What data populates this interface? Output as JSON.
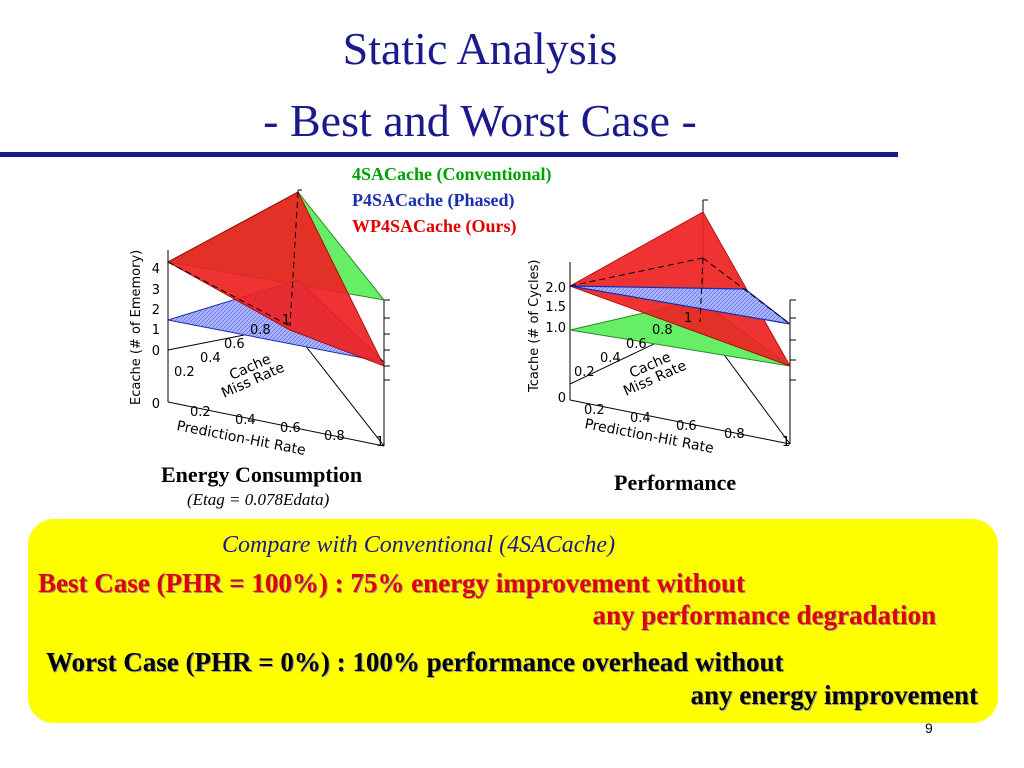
{
  "slide": {
    "title_line1": "Static Analysis",
    "title_line2": "- Best and Worst Case -",
    "page_number": "9"
  },
  "legend": {
    "conventional": "4SACache (Conventional)",
    "phased": "P4SACache (Phased)",
    "ours": "WP4SACache (Ours)"
  },
  "colors": {
    "title": "#1a1a8c",
    "conventional": "#00a000",
    "phased": "#1a2eb0",
    "ours": "#e00000",
    "conventional_fill": "#66ee66",
    "phased_fill": "#aab4ff",
    "ours_fill": "#ee2222",
    "highlight_box": "#ffff00"
  },
  "charts": {
    "energy": {
      "zlabel": "Ecache (# of Ememory)",
      "z_ticks": [
        "4",
        "3",
        "2",
        "1",
        "0"
      ],
      "miss_label_1": "Cache",
      "miss_label_2": "Miss Rate",
      "miss_ticks": [
        "0.2",
        "0.4",
        "0.6",
        "0.8",
        "1"
      ],
      "phr_label": "Prediction-Hit Rate",
      "phr_ticks": [
        "0.2",
        "0.4",
        "0.6",
        "0.8",
        "1"
      ],
      "origin_label": "0",
      "caption": "Energy Consumption",
      "caption_sub": "(Etag = 0.078Edata)"
    },
    "performance": {
      "zlabel": "Tcache (# of Cycles)",
      "z_ticks": [
        "2.0",
        "1.5",
        "1.0"
      ],
      "miss_label_1": "Cache",
      "miss_label_2": "Miss Rate",
      "miss_ticks": [
        "0.2",
        "0.4",
        "0.6",
        "0.8",
        "1"
      ],
      "phr_label": "Prediction-Hit Rate",
      "phr_ticks": [
        "0.2",
        "0.4",
        "0.6",
        "0.8",
        "1"
      ],
      "origin_label": "0",
      "caption": "Performance"
    }
  },
  "summary": {
    "heading": "Compare with Conventional (4SACache)",
    "best_line1": "Best Case (PHR = 100%) : 75% energy improvement without",
    "best_line2": "any performance degradation",
    "worst_line1": "Worst Case (PHR = 0%) : 100% performance overhead without",
    "worst_line2": "any energy improvement"
  }
}
